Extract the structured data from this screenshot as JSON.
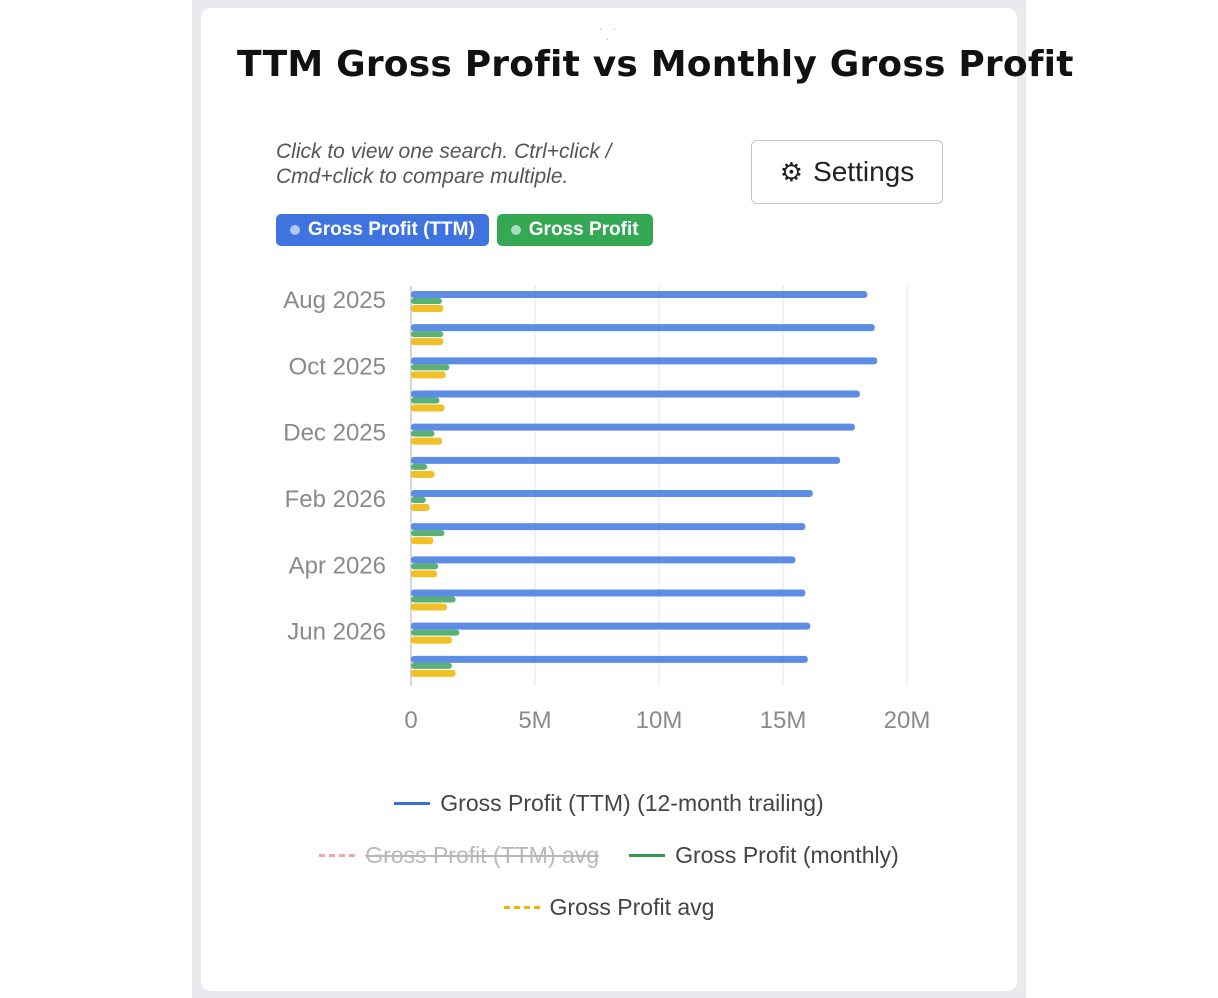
{
  "widget": {
    "title": "TTM Gross Profit vs Monthly Gross Profit",
    "hint": "Click to view one search. Ctrl+click / Cmd+click to compare multiple.",
    "settings_label": "Settings",
    "settings_icon": "gear-icon",
    "drag_handle": ". . ."
  },
  "chips": [
    {
      "label": "Gross Profit (TTM)",
      "color": "#3e73e0"
    },
    {
      "label": "Gross Profit",
      "color": "#34a853"
    }
  ],
  "chart_data": {
    "type": "bar",
    "orientation": "horizontal",
    "categories": [
      "Aug 2025",
      "Sep 2025",
      "Oct 2025",
      "Nov 2025",
      "Dec 2025",
      "Jan 2026",
      "Feb 2026",
      "Mar 2026",
      "Apr 2026",
      "May 2026",
      "Jun 2026",
      "Jul 2026"
    ],
    "category_tick_labels": [
      "Aug 2025",
      "Oct 2025",
      "Dec 2025",
      "Feb 2026",
      "Apr 2026",
      "Jun 2026"
    ],
    "series": [
      {
        "name": "Gross Profit (TTM) (12-month trailing)",
        "color": "#4a7fe0",
        "values": [
          18.4,
          18.7,
          18.8,
          18.1,
          17.9,
          17.3,
          16.2,
          15.9,
          15.5,
          15.9,
          16.1,
          16.0
        ]
      },
      {
        "name": "Gross Profit (monthly)",
        "color": "#3da35d",
        "values": [
          1.25,
          1.3,
          1.55,
          1.15,
          0.95,
          0.65,
          0.6,
          1.35,
          1.1,
          1.8,
          1.95,
          1.65
        ]
      },
      {
        "name": "Gross Profit avg",
        "color": "#f0b400",
        "values": [
          1.3,
          1.3,
          1.4,
          1.35,
          1.25,
          0.95,
          0.75,
          0.9,
          1.05,
          1.45,
          1.65,
          1.8
        ]
      }
    ],
    "x_ticks": [
      "0",
      "5M",
      "10M",
      "15M",
      "20M"
    ],
    "xlim": [
      0,
      20
    ],
    "x_unit": "M",
    "grid": true
  },
  "legend": [
    [
      {
        "label": "Gross Profit (TTM) (12-month trailing)",
        "color": "#3a6fd8",
        "style": "solid",
        "off": false
      }
    ],
    [
      {
        "label": "Gross Profit (TTM) avg",
        "color": "#f4a6a6",
        "style": "dashed",
        "off": true
      },
      {
        "label": "Gross Profit (monthly)",
        "color": "#2e9b4e",
        "style": "solid",
        "off": false
      }
    ],
    [
      {
        "label": "Gross Profit avg",
        "color": "#f0b400",
        "style": "dashed",
        "off": false
      }
    ]
  ]
}
